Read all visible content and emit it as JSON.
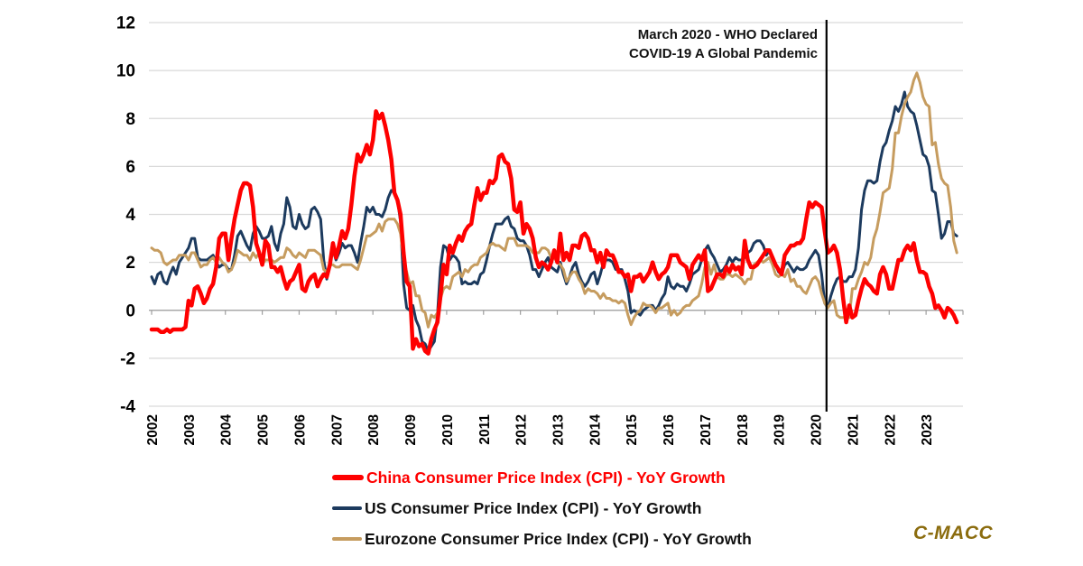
{
  "chart_data": {
    "type": "line",
    "x_unit": "month",
    "x_start_year": 2002,
    "x_tick_labels": [
      "2002",
      "2003",
      "2004",
      "2005",
      "2006",
      "2007",
      "2008",
      "2009",
      "2010",
      "2011",
      "2012",
      "2013",
      "2014",
      "2015",
      "2016",
      "2017",
      "2018",
      "2019",
      "2020",
      "2021",
      "2022",
      "2023"
    ],
    "y_ticks": [
      12,
      10,
      8,
      6,
      4,
      2,
      0,
      -2,
      -4
    ],
    "ylim": [
      -4,
      12
    ],
    "grid": "horizontal",
    "legend_position": "bottom",
    "annotation": {
      "line1": "March 2020 - WHO Declared",
      "line2": "COVID-19 A Global Pandemic",
      "x_year": 2020.3
    },
    "series": [
      {
        "name": "China Consumer Price Index (CPI) - YoY Growth",
        "color": "#fe0000",
        "width": 4.5,
        "values": [
          -0.8,
          -0.8,
          -0.8,
          -0.9,
          -0.9,
          -0.8,
          -0.9,
          -0.8,
          -0.8,
          -0.8,
          -0.8,
          -0.7,
          0.4,
          0.2,
          0.9,
          1.0,
          0.7,
          0.3,
          0.5,
          0.9,
          1.1,
          1.8,
          3.0,
          3.2,
          3.2,
          2.1,
          3.0,
          3.8,
          4.4,
          5.0,
          5.3,
          5.3,
          5.2,
          4.3,
          2.8,
          2.4,
          1.9,
          2.9,
          2.7,
          1.8,
          1.8,
          1.6,
          1.8,
          1.3,
          0.9,
          1.2,
          1.3,
          1.6,
          1.9,
          0.9,
          0.8,
          1.2,
          1.4,
          1.5,
          1.0,
          1.3,
          1.5,
          1.4,
          1.9,
          2.8,
          2.2,
          2.7,
          3.3,
          3.0,
          3.4,
          4.4,
          5.6,
          6.5,
          6.2,
          6.5,
          6.9,
          6.5,
          7.1,
          8.3,
          8.0,
          8.2,
          7.7,
          7.1,
          6.3,
          4.9,
          4.6,
          4.0,
          2.4,
          1.2,
          1.0,
          -1.6,
          -1.2,
          -1.5,
          -1.4,
          -1.7,
          -1.8,
          -1.2,
          -0.8,
          -0.5,
          0.6,
          1.9,
          1.5,
          2.7,
          2.4,
          2.8,
          3.1,
          2.9,
          3.3,
          3.5,
          3.6,
          4.4,
          5.1,
          4.6,
          4.9,
          4.9,
          5.4,
          5.3,
          5.5,
          6.4,
          6.5,
          6.2,
          6.1,
          5.5,
          4.2,
          4.1,
          4.5,
          3.2,
          3.6,
          3.4,
          3.0,
          2.2,
          1.8,
          2.0,
          1.9,
          1.7,
          2.0,
          2.5,
          2.0,
          3.2,
          2.1,
          2.4,
          2.1,
          2.7,
          2.7,
          2.6,
          3.1,
          3.2,
          3.0,
          2.5,
          2.5,
          2.0,
          2.4,
          1.8,
          2.5,
          2.3,
          2.3,
          2.0,
          1.6,
          1.6,
          1.4,
          1.5,
          0.8,
          1.4,
          1.4,
          1.5,
          1.2,
          1.4,
          1.6,
          2.0,
          1.6,
          1.3,
          1.5,
          1.6,
          1.8,
          2.3,
          2.3,
          2.3,
          2.0,
          1.9,
          1.8,
          1.3,
          1.9,
          2.1,
          2.3,
          2.1,
          2.5,
          0.8,
          0.9,
          1.2,
          1.5,
          1.5,
          1.4,
          1.8,
          1.6,
          1.9,
          1.7,
          1.8,
          1.5,
          2.9,
          2.1,
          1.8,
          1.8,
          1.9,
          2.1,
          2.3,
          2.5,
          2.5,
          2.2,
          1.9,
          1.7,
          1.5,
          2.3,
          2.5,
          2.7,
          2.7,
          2.8,
          2.8,
          3.0,
          3.8,
          4.5,
          4.3,
          4.5,
          4.4,
          4.3,
          3.3,
          2.4,
          2.5,
          2.7,
          2.4,
          1.7,
          0.5,
          -0.5,
          0.2,
          -0.3,
          -0.2,
          0.4,
          0.9,
          1.3,
          1.1,
          1.0,
          0.8,
          0.7,
          1.5,
          1.8,
          1.5,
          0.9,
          0.9,
          1.5,
          2.1,
          2.1,
          2.5,
          2.7,
          2.5,
          2.8,
          2.1,
          1.6,
          1.6,
          1.5,
          1.0,
          0.7,
          0.1,
          0.2,
          0.0,
          -0.3,
          0.1,
          0.0,
          -0.2,
          -0.5
        ]
      },
      {
        "name": "US Consumer Price Index (CPI) - YoY Growth",
        "color": "#1c3a5e",
        "width": 3,
        "values": [
          1.4,
          1.1,
          1.5,
          1.6,
          1.2,
          1.1,
          1.5,
          1.8,
          1.5,
          2.0,
          2.2,
          2.4,
          2.6,
          3.0,
          3.0,
          2.2,
          2.1,
          2.1,
          2.1,
          2.2,
          2.3,
          2.0,
          1.8,
          1.9,
          1.9,
          1.7,
          1.7,
          2.3,
          3.1,
          3.3,
          3.0,
          2.7,
          2.5,
          3.2,
          3.5,
          3.3,
          3.0,
          3.0,
          3.1,
          3.5,
          2.8,
          2.5,
          3.2,
          3.6,
          4.7,
          4.3,
          3.5,
          3.4,
          4.0,
          3.6,
          3.4,
          3.5,
          4.2,
          4.3,
          4.1,
          3.8,
          2.1,
          1.3,
          2.0,
          2.5,
          2.1,
          2.4,
          2.8,
          2.6,
          2.7,
          2.7,
          2.4,
          2.0,
          2.8,
          3.5,
          4.3,
          4.1,
          4.3,
          4.0,
          4.0,
          3.9,
          4.2,
          4.7,
          5.0,
          4.9,
          4.6,
          3.7,
          1.1,
          0.1,
          0.0,
          0.2,
          -0.4,
          -0.7,
          -1.3,
          -1.4,
          -1.7,
          -1.5,
          -1.3,
          -0.2,
          1.8,
          2.7,
          2.6,
          2.1,
          2.3,
          2.2,
          2.0,
          1.1,
          1.2,
          1.1,
          1.1,
          1.2,
          1.1,
          1.5,
          1.6,
          2.1,
          2.7,
          3.2,
          3.6,
          3.6,
          3.6,
          3.8,
          3.9,
          3.5,
          3.4,
          3.0,
          2.9,
          2.9,
          2.7,
          2.3,
          1.7,
          1.7,
          1.4,
          1.7,
          2.0,
          2.2,
          1.8,
          1.7,
          1.6,
          2.0,
          1.5,
          1.1,
          1.4,
          1.8,
          2.0,
          1.5,
          1.2,
          1.0,
          1.2,
          1.5,
          1.6,
          1.1,
          1.5,
          2.0,
          2.1,
          2.1,
          2.0,
          1.7,
          1.7,
          1.7,
          1.3,
          0.8,
          -0.1,
          0.0,
          -0.1,
          -0.2,
          0.0,
          0.1,
          0.2,
          0.2,
          0.0,
          0.2,
          0.5,
          0.7,
          1.4,
          1.0,
          0.9,
          1.1,
          1.0,
          1.0,
          0.8,
          1.1,
          1.5,
          1.6,
          1.7,
          2.1,
          2.5,
          2.7,
          2.4,
          2.2,
          1.9,
          1.6,
          1.7,
          1.9,
          2.2,
          2.0,
          2.2,
          2.1,
          2.1,
          2.2,
          2.4,
          2.5,
          2.8,
          2.9,
          2.9,
          2.7,
          2.3,
          2.5,
          2.2,
          1.9,
          1.6,
          1.5,
          1.9,
          2.0,
          1.8,
          1.6,
          1.8,
          1.7,
          1.7,
          1.8,
          2.1,
          2.3,
          2.5,
          2.3,
          1.5,
          0.3,
          0.1,
          0.6,
          1.0,
          1.3,
          1.4,
          1.2,
          1.2,
          1.4,
          1.4,
          1.7,
          2.6,
          4.2,
          5.0,
          5.4,
          5.4,
          5.3,
          5.4,
          6.2,
          6.8,
          7.0,
          7.5,
          7.9,
          8.5,
          8.3,
          8.6,
          9.1,
          8.5,
          8.3,
          8.2,
          7.7,
          7.1,
          6.5,
          6.4,
          6.0,
          5.0,
          4.9,
          4.0,
          3.0,
          3.2,
          3.7,
          3.7,
          3.2,
          3.1
        ]
      },
      {
        "name": "Eurozone Consumer Price Index (CPI) - YoY Growth",
        "color": "#c69c5f",
        "width": 3,
        "values": [
          2.6,
          2.5,
          2.5,
          2.4,
          2.0,
          1.9,
          2.0,
          2.1,
          2.1,
          2.3,
          2.3,
          2.3,
          2.1,
          2.4,
          2.4,
          2.1,
          1.8,
          1.9,
          1.9,
          2.1,
          2.2,
          2.0,
          2.2,
          2.0,
          1.9,
          1.6,
          1.7,
          2.0,
          2.5,
          2.4,
          2.3,
          2.3,
          2.1,
          2.4,
          2.2,
          2.4,
          1.9,
          2.1,
          2.1,
          2.1,
          2.0,
          2.1,
          2.2,
          2.2,
          2.6,
          2.5,
          2.3,
          2.2,
          2.4,
          2.3,
          2.2,
          2.5,
          2.5,
          2.5,
          2.4,
          2.3,
          1.7,
          1.6,
          1.9,
          1.9,
          1.8,
          1.8,
          1.9,
          1.9,
          1.9,
          1.9,
          1.8,
          1.7,
          2.1,
          2.6,
          3.1,
          3.1,
          3.2,
          3.3,
          3.6,
          3.3,
          3.7,
          3.8,
          3.8,
          3.8,
          3.6,
          3.2,
          2.1,
          1.6,
          1.1,
          1.2,
          0.6,
          0.6,
          0.0,
          -0.1,
          -0.7,
          -0.2,
          -0.3,
          -0.1,
          0.5,
          0.9,
          1.0,
          0.9,
          1.4,
          1.5,
          1.6,
          1.4,
          1.7,
          1.6,
          1.8,
          1.9,
          1.9,
          2.2,
          2.3,
          2.4,
          2.7,
          2.8,
          2.7,
          2.7,
          2.6,
          2.5,
          3.0,
          3.0,
          3.0,
          2.7,
          2.7,
          2.7,
          2.7,
          2.6,
          2.4,
          2.4,
          2.4,
          2.6,
          2.6,
          2.5,
          2.2,
          2.2,
          2.0,
          1.9,
          1.7,
          1.2,
          1.4,
          1.6,
          1.6,
          1.3,
          1.1,
          0.7,
          0.9,
          0.8,
          0.8,
          0.7,
          0.5,
          0.7,
          0.5,
          0.5,
          0.4,
          0.4,
          0.3,
          0.4,
          0.3,
          -0.2,
          -0.6,
          -0.3,
          -0.1,
          0.0,
          0.3,
          0.2,
          0.2,
          0.1,
          -0.1,
          0.1,
          0.1,
          0.2,
          0.3,
          -0.2,
          0.0,
          -0.2,
          -0.1,
          0.1,
          0.2,
          0.2,
          0.4,
          0.5,
          0.6,
          1.1,
          1.8,
          2.0,
          1.5,
          1.9,
          1.4,
          1.3,
          1.3,
          1.5,
          1.5,
          1.4,
          1.5,
          1.4,
          1.3,
          1.1,
          1.3,
          1.3,
          1.9,
          2.0,
          2.1,
          2.0,
          2.1,
          2.2,
          1.9,
          1.5,
          1.4,
          1.5,
          1.4,
          1.7,
          1.2,
          1.3,
          1.0,
          1.0,
          0.8,
          0.7,
          1.0,
          1.3,
          1.4,
          1.2,
          0.7,
          0.3,
          0.1,
          0.3,
          0.4,
          -0.2,
          -0.3,
          -0.3,
          -0.3,
          -0.3,
          0.9,
          0.9,
          1.3,
          1.6,
          2.0,
          1.9,
          2.2,
          3.0,
          3.4,
          4.1,
          4.9,
          5.0,
          5.1,
          5.9,
          7.4,
          7.4,
          8.1,
          8.6,
          8.9,
          9.1,
          9.6,
          9.9,
          9.5,
          8.9,
          8.6,
          8.5,
          6.9,
          7.0,
          6.1,
          5.5,
          5.3,
          5.2,
          4.3,
          2.9,
          2.4
        ]
      }
    ]
  },
  "logo": {
    "text": "C-MACC",
    "color": "#8b6c0e"
  },
  "style_colors": {
    "gridline": "#d9d9d9",
    "axis": "#9e9e9e",
    "pandemic_line": "#000000",
    "tick_label": "#000000"
  }
}
